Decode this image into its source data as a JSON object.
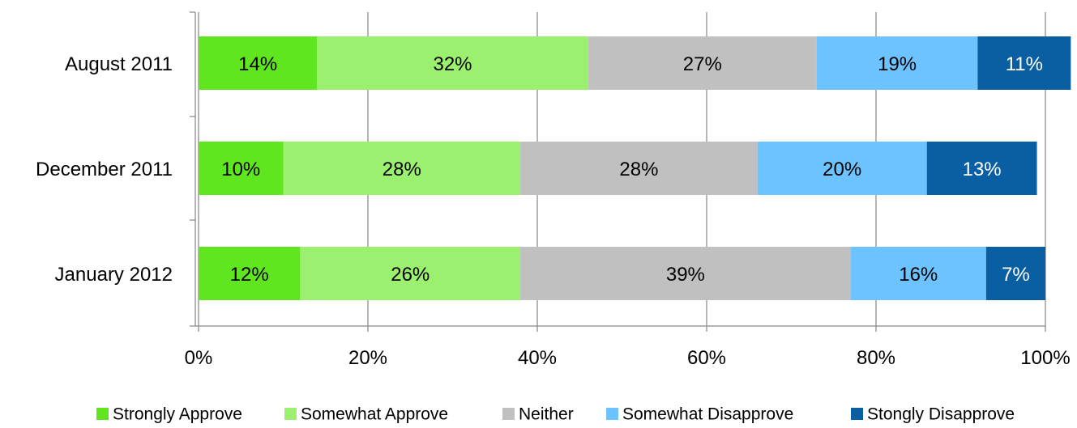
{
  "chart_data": {
    "type": "bar",
    "orientation": "horizontal",
    "stacked": "percent",
    "title": "",
    "xlabel": "",
    "ylabel": "",
    "xlim": [
      0,
      100
    ],
    "x_ticks": [
      "0%",
      "20%",
      "40%",
      "60%",
      "80%",
      "100%"
    ],
    "grid": true,
    "legend_position": "bottom",
    "categories": [
      "August 2011",
      "December 2011",
      "January 2012"
    ],
    "series": [
      {
        "name": "Strongly Approve",
        "color": "#5fe61e",
        "label_color": "#000000",
        "values": [
          14,
          10,
          12
        ],
        "labels": [
          "14%",
          "10%",
          "12%"
        ]
      },
      {
        "name": "Somewhat Approve",
        "color": "#9cf06f",
        "label_color": "#000000",
        "values": [
          32,
          28,
          26
        ],
        "labels": [
          "32%",
          "28%",
          "26%"
        ]
      },
      {
        "name": "Neither",
        "color": "#c0c0c0",
        "label_color": "#000000",
        "values": [
          27,
          28,
          39
        ],
        "labels": [
          "27%",
          "28%",
          "39%"
        ]
      },
      {
        "name": "Somewhat Disapprove",
        "color": "#6dc3ff",
        "label_color": "#000000",
        "values": [
          19,
          20,
          16
        ],
        "labels": [
          "19%",
          "20%",
          "16%"
        ]
      },
      {
        "name": "Stongly Disapprove",
        "color": "#0a5fa3",
        "label_color": "#ffffff",
        "values": [
          11,
          13,
          7
        ],
        "labels": [
          "11%",
          "13%",
          "7%"
        ]
      }
    ]
  }
}
